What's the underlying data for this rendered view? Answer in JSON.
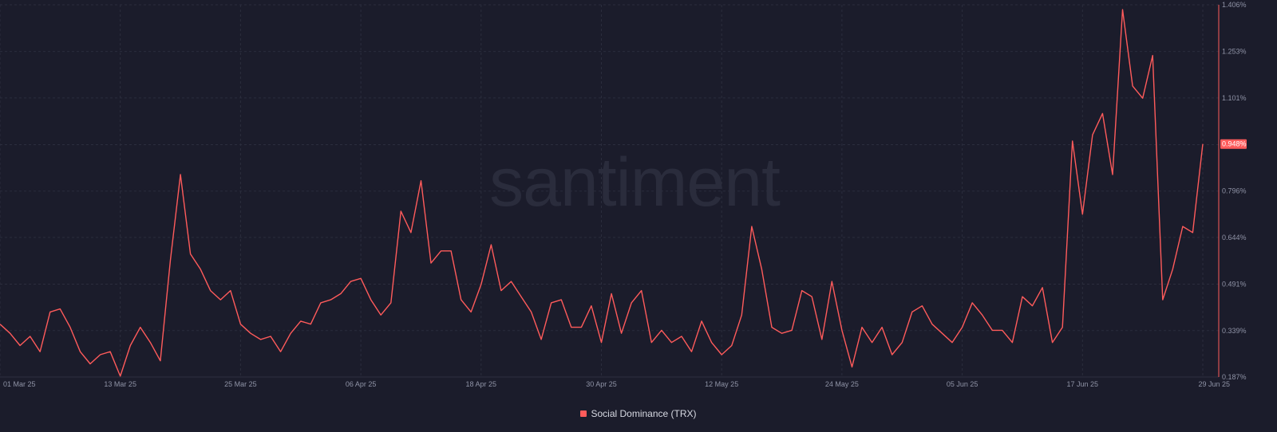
{
  "chart_data": {
    "type": "line",
    "watermark": "santiment",
    "legend": {
      "placement": "bottom-center",
      "entries": [
        "Social Dominance (TRX)"
      ]
    },
    "colors": {
      "series": "#ff5b5b",
      "background": "#1b1c2b",
      "grid": "#2b2d3d",
      "axis_text": "#8f93a6"
    },
    "grid": true,
    "x_ticks": [
      {
        "label": "01 Mar 25",
        "index": 0
      },
      {
        "label": "13 Mar 25",
        "index": 12
      },
      {
        "label": "25 Mar 25",
        "index": 24
      },
      {
        "label": "06 Apr 25",
        "index": 36
      },
      {
        "label": "18 Apr 25",
        "index": 48
      },
      {
        "label": "30 Apr 25",
        "index": 60
      },
      {
        "label": "12 May 25",
        "index": 72
      },
      {
        "label": "24 May 25",
        "index": 84
      },
      {
        "label": "05 Jun 25",
        "index": 96
      },
      {
        "label": "17 Jun 25",
        "index": 108
      },
      {
        "label": "29 Jun 25",
        "index": 120
      }
    ],
    "y_ticks": [
      "1.406%",
      "1.253%",
      "1.101%",
      "0.948%",
      "0.796%",
      "0.644%",
      "0.491%",
      "0.339%",
      "0.187%"
    ],
    "y_tick_values": [
      1.406,
      1.253,
      1.101,
      0.948,
      0.796,
      0.644,
      0.491,
      0.339,
      0.187
    ],
    "ylim": [
      0.187,
      1.406
    ],
    "last_value_label": "0.948%",
    "series": [
      {
        "name": "Social Dominance (TRX)",
        "values": [
          0.36,
          0.33,
          0.29,
          0.32,
          0.27,
          0.4,
          0.41,
          0.35,
          0.27,
          0.23,
          0.26,
          0.27,
          0.19,
          0.29,
          0.35,
          0.3,
          0.24,
          0.57,
          0.85,
          0.59,
          0.54,
          0.47,
          0.44,
          0.47,
          0.36,
          0.33,
          0.31,
          0.32,
          0.27,
          0.33,
          0.37,
          0.36,
          0.43,
          0.44,
          0.46,
          0.5,
          0.51,
          0.44,
          0.39,
          0.43,
          0.73,
          0.66,
          0.83,
          0.56,
          0.6,
          0.6,
          0.44,
          0.4,
          0.49,
          0.62,
          0.47,
          0.5,
          0.45,
          0.4,
          0.31,
          0.43,
          0.44,
          0.35,
          0.35,
          0.42,
          0.3,
          0.46,
          0.33,
          0.43,
          0.47,
          0.3,
          0.34,
          0.3,
          0.32,
          0.27,
          0.37,
          0.3,
          0.26,
          0.29,
          0.39,
          0.68,
          0.54,
          0.35,
          0.33,
          0.34,
          0.47,
          0.45,
          0.31,
          0.5,
          0.34,
          0.22,
          0.35,
          0.3,
          0.35,
          0.26,
          0.3,
          0.4,
          0.42,
          0.36,
          0.33,
          0.3,
          0.35,
          0.43,
          0.39,
          0.34,
          0.34,
          0.3,
          0.45,
          0.42,
          0.48,
          0.3,
          0.35,
          0.96,
          0.72,
          0.98,
          1.05,
          0.85,
          1.39,
          1.14,
          1.1,
          1.24,
          0.44,
          0.54,
          0.68,
          0.66,
          0.95
        ]
      }
    ]
  }
}
